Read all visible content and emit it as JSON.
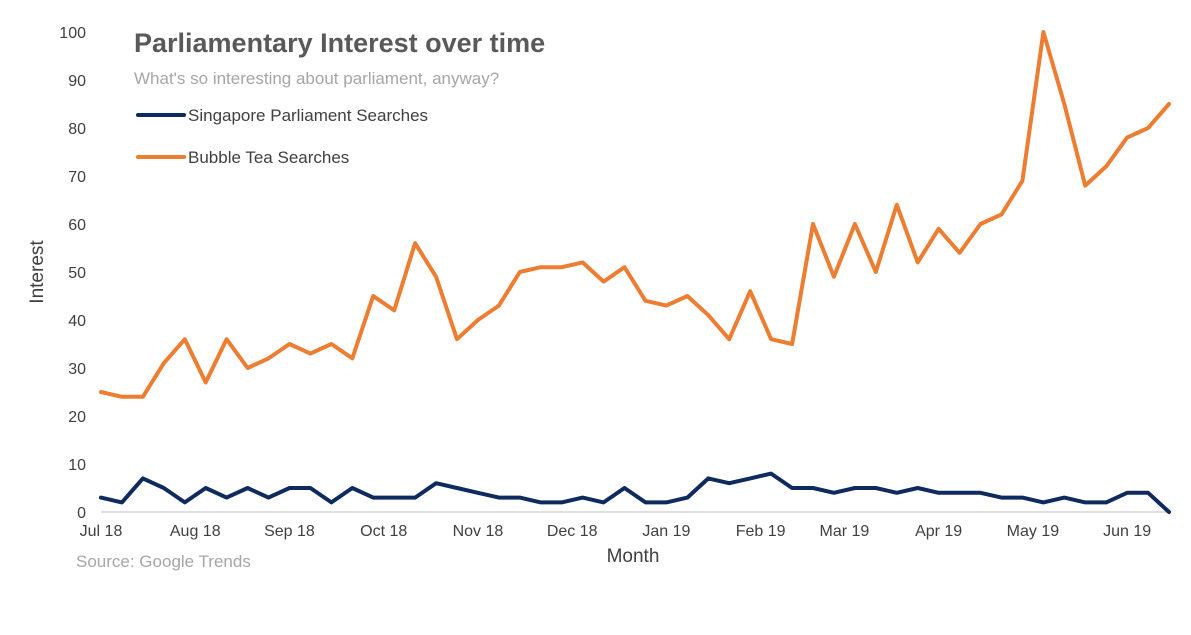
{
  "chart_data": {
    "type": "line",
    "title": "Parliamentary Interest over time",
    "subtitle": "What's so interesting about parliament, anyway?",
    "xlabel": "Month",
    "ylabel": "Interest",
    "source": "Source: Google Trends",
    "ylim": [
      0,
      100
    ],
    "yticks": [
      "0",
      "10",
      "20",
      "30",
      "40",
      "50",
      "60",
      "70",
      "80",
      "90",
      "100"
    ],
    "x_count": 52,
    "month_labels": [
      {
        "label": "Jul 18",
        "index": 0
      },
      {
        "label": "Aug 18",
        "index": 4.5
      },
      {
        "label": "Sep 18",
        "index": 9
      },
      {
        "label": "Oct 18",
        "index": 13.5
      },
      {
        "label": "Nov 18",
        "index": 18
      },
      {
        "label": "Dec 18",
        "index": 22.5
      },
      {
        "label": "Jan 19",
        "index": 27
      },
      {
        "label": "Feb 19",
        "index": 31.5
      },
      {
        "label": "Mar 19",
        "index": 35.5
      },
      {
        "label": "Apr 19",
        "index": 40
      },
      {
        "label": "May 19",
        "index": 44.5
      },
      {
        "label": "Jun 19",
        "index": 49
      }
    ],
    "series": [
      {
        "name": "Singapore Parliament Searches",
        "color": "#0e2a5e",
        "values": [
          3,
          2,
          7,
          5,
          2,
          5,
          3,
          5,
          3,
          5,
          5,
          2,
          5,
          3,
          3,
          3,
          6,
          5,
          4,
          3,
          3,
          2,
          2,
          3,
          2,
          5,
          2,
          2,
          3,
          7,
          6,
          7,
          8,
          5,
          5,
          4,
          5,
          5,
          4,
          5,
          4,
          4,
          4,
          3,
          3,
          2,
          3,
          2,
          2,
          4,
          4,
          0
        ]
      },
      {
        "name": "Bubble Tea Searches",
        "color": "#ed7d31",
        "values": [
          25,
          24,
          24,
          31,
          36,
          27,
          36,
          30,
          32,
          35,
          33,
          35,
          32,
          45,
          42,
          56,
          49,
          36,
          40,
          43,
          50,
          51,
          51,
          52,
          48,
          51,
          44,
          43,
          45,
          41,
          36,
          46,
          36,
          35,
          60,
          49,
          60,
          50,
          64,
          52,
          59,
          54,
          60,
          62,
          69,
          100,
          85,
          68,
          72,
          78,
          80,
          85
        ]
      }
    ]
  }
}
